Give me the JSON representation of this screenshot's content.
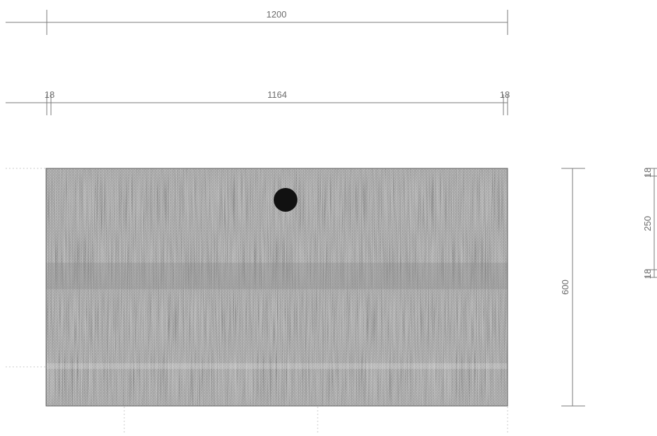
{
  "dimensions": {
    "overall_width": "1200",
    "inner_width": "1164",
    "left_thickness": "18",
    "right_thickness": "18",
    "depth": "600",
    "side_top_thickness": "18",
    "side_height": "250",
    "side_bottom_thickness": "18"
  },
  "colors": {
    "line": "#7a7a7a",
    "panel_fill": "#bdbdbd",
    "panel_dark": "#8f8f8f",
    "panel_light": "#e6e6e6",
    "cable_hole": "#111111",
    "text": "#6b6b6b"
  },
  "icons": {
    "cable_hole": "cable-grommet-hole"
  }
}
